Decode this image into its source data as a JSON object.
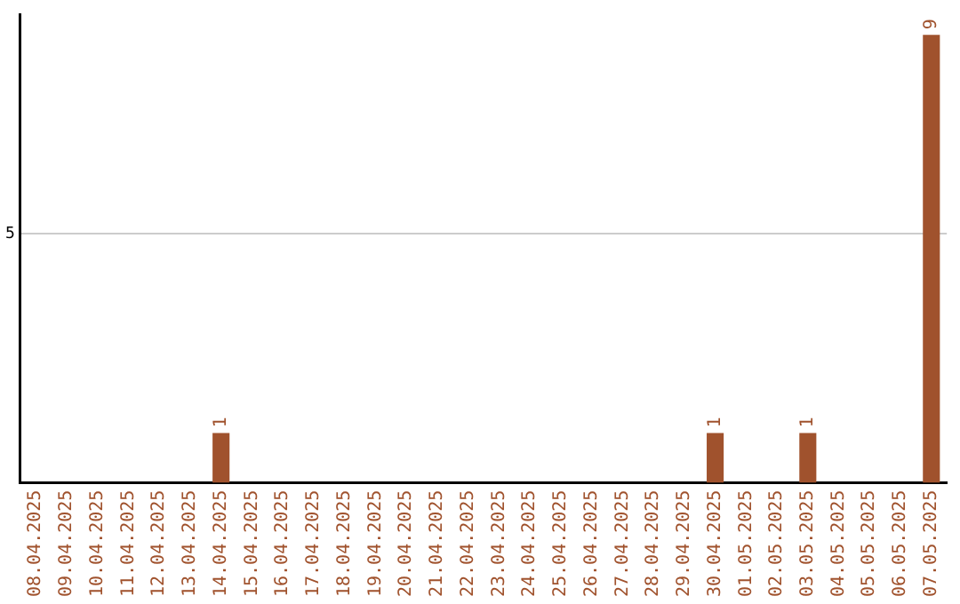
{
  "chart_data": {
    "type": "bar",
    "categories": [
      "08.04.2025",
      "09.04.2025",
      "10.04.2025",
      "11.04.2025",
      "12.04.2025",
      "13.04.2025",
      "14.04.2025",
      "15.04.2025",
      "16.04.2025",
      "17.04.2025",
      "18.04.2025",
      "19.04.2025",
      "20.04.2025",
      "21.04.2025",
      "22.04.2025",
      "23.04.2025",
      "24.04.2025",
      "25.04.2025",
      "26.04.2025",
      "27.04.2025",
      "28.04.2025",
      "29.04.2025",
      "30.04.2025",
      "01.05.2025",
      "02.05.2025",
      "03.05.2025",
      "04.05.2025",
      "05.05.2025",
      "06.05.2025",
      "07.05.2025"
    ],
    "values": [
      0,
      0,
      0,
      0,
      0,
      0,
      1,
      0,
      0,
      0,
      0,
      0,
      0,
      0,
      0,
      0,
      0,
      0,
      0,
      0,
      0,
      0,
      1,
      0,
      0,
      1,
      0,
      0,
      0,
      9
    ],
    "value_labels": [
      null,
      null,
      null,
      null,
      null,
      null,
      "1",
      null,
      null,
      null,
      null,
      null,
      null,
      null,
      null,
      null,
      null,
      null,
      null,
      null,
      null,
      null,
      "1",
      null,
      null,
      "1",
      null,
      null,
      null,
      "9"
    ],
    "color": "#a0522d",
    "ylim": [
      0,
      9.4
    ],
    "yticks": [
      5
    ],
    "grid": "y",
    "legend": false
  }
}
